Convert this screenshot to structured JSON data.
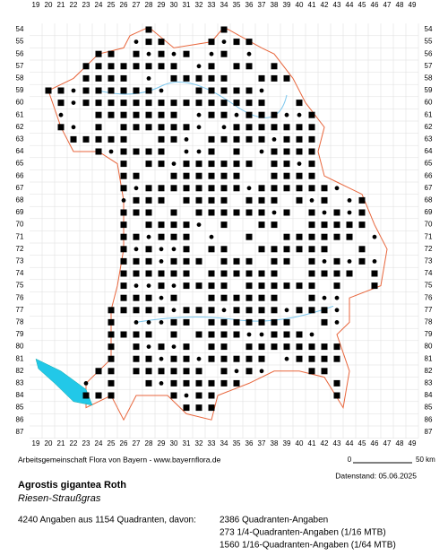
{
  "map": {
    "columns": [
      19,
      20,
      21,
      22,
      23,
      24,
      25,
      26,
      27,
      28,
      29,
      30,
      31,
      32,
      33,
      34,
      35,
      36,
      37,
      38,
      39,
      40,
      41,
      42,
      43,
      44,
      45,
      46,
      47,
      48,
      49
    ],
    "rows": [
      54,
      55,
      56,
      57,
      58,
      59,
      60,
      61,
      62,
      63,
      64,
      65,
      66,
      67,
      68,
      69,
      70,
      71,
      72,
      73,
      74,
      75,
      76,
      77,
      78,
      79,
      80,
      81,
      82,
      83,
      84,
      85,
      86,
      87
    ]
  },
  "credit": "Arbeitsgemeinschaft Flora von Bayern - www.bayernflora.de",
  "scale": {
    "start": "0",
    "end": "50 km"
  },
  "date": "Datenstand: 05.06.2025",
  "species": {
    "name": "Agrostis gigantea Roth",
    "common": "Riesen-Straußgras"
  },
  "summary": "4240 Angaben aus 1154 Quadranten, davon:",
  "counts": [
    "2386 Quadranten-Angaben",
    "273 1/4-Quadranten-Angaben (1/16 MTB)",
    "1560 1/16-Quadranten-Angaben (1/64 MTB)"
  ]
}
